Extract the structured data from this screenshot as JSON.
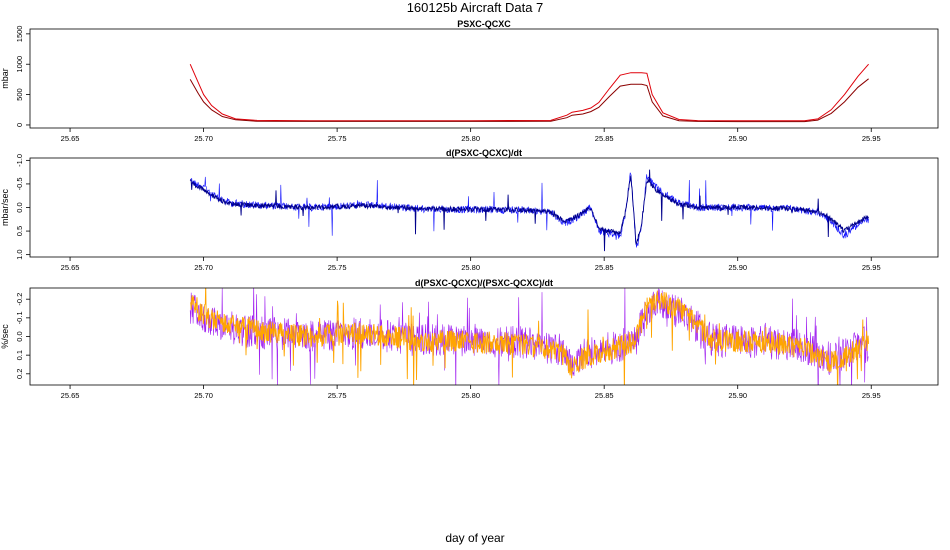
{
  "figure": {
    "title": "160125b   Aircraft Data 7",
    "xlabel": "day of year"
  },
  "colors": {
    "red": "#e0000a",
    "darkred": "#8b0000",
    "navy": "#00008b",
    "blue": "#1010ff",
    "purple": "#a020f0",
    "orange": "#ffa500"
  },
  "chart_data": [
    {
      "type": "line",
      "title": "PSXC-QCXC",
      "ylabel": "mbar",
      "xlim": [
        25.635,
        25.975
      ],
      "ylim": [
        -50,
        1580
      ],
      "xticks": [
        25.65,
        25.7,
        25.75,
        25.8,
        25.85,
        25.9,
        25.95
      ],
      "xtick_labels": [
        "25.65",
        "25.70",
        "25.75",
        "25.80",
        "25.85",
        "25.90",
        "25.95"
      ],
      "yticks": [
        0,
        500,
        1000,
        1500
      ],
      "ytick_labels": [
        "0",
        "500",
        "1000",
        "1500"
      ],
      "series": [
        {
          "name": "PSXC-QCXC (red)",
          "color": "red",
          "x": [
            25.695,
            25.698,
            25.7,
            25.703,
            25.707,
            25.712,
            25.72,
            25.74,
            25.8,
            25.83,
            25.836,
            25.838,
            25.842,
            25.845,
            25.848,
            25.852,
            25.856,
            25.86,
            25.864,
            25.866,
            25.868,
            25.872,
            25.878,
            25.885,
            25.9,
            25.925,
            25.93,
            25.935,
            25.94,
            25.945,
            25.949
          ],
          "y": [
            1000,
            700,
            500,
            320,
            180,
            100,
            75,
            70,
            70,
            75,
            160,
            210,
            240,
            280,
            370,
            600,
            820,
            860,
            860,
            850,
            500,
            200,
            90,
            72,
            70,
            70,
            100,
            250,
            500,
            800,
            1000
          ]
        },
        {
          "name": "PSXC-QCXC (dark red)",
          "color": "darkred",
          "x": [
            25.695,
            25.698,
            25.7,
            25.703,
            25.707,
            25.712,
            25.72,
            25.74,
            25.8,
            25.83,
            25.836,
            25.838,
            25.842,
            25.845,
            25.848,
            25.852,
            25.856,
            25.86,
            25.864,
            25.866,
            25.868,
            25.872,
            25.878,
            25.885,
            25.9,
            25.925,
            25.93,
            25.935,
            25.94,
            25.945,
            25.949
          ],
          "y": [
            750,
            520,
            380,
            250,
            140,
            85,
            60,
            58,
            58,
            60,
            120,
            160,
            180,
            220,
            290,
            470,
            640,
            670,
            670,
            650,
            380,
            150,
            70,
            58,
            56,
            56,
            80,
            190,
            380,
            620,
            760
          ]
        }
      ]
    },
    {
      "type": "line",
      "title": "d(PSXC-QCXC)/dt",
      "ylabel": "mbar/sec",
      "xlim": [
        25.635,
        25.975
      ],
      "ylim": [
        1.05,
        -1.05
      ],
      "xticks": [
        25.65,
        25.7,
        25.75,
        25.8,
        25.85,
        25.9,
        25.95
      ],
      "xtick_labels": [
        "25.65",
        "25.70",
        "25.75",
        "25.80",
        "25.85",
        "25.90",
        "25.95"
      ],
      "yticks": [
        -1.0,
        -0.5,
        0.0,
        0.5,
        1.0
      ],
      "ytick_labels": [
        "-1.0",
        "-0.5",
        "0.0",
        "0.5",
        "1.0"
      ],
      "series": [
        {
          "name": "d(PSXC-QCXC)/dt (blue)",
          "color": "blue",
          "x": [
            25.695,
            25.697,
            25.7,
            25.705,
            25.71,
            25.72,
            25.74,
            25.76,
            25.78,
            25.8,
            25.82,
            25.83,
            25.835,
            25.84,
            25.845,
            25.848,
            25.852,
            25.856,
            25.858,
            25.86,
            25.862,
            25.864,
            25.866,
            25.868,
            25.872,
            25.878,
            25.885,
            25.9,
            25.92,
            25.93,
            25.935,
            25.94,
            25.945,
            25.949
          ],
          "y": [
            -0.6,
            -0.5,
            -0.45,
            -0.2,
            -0.1,
            -0.05,
            0.0,
            -0.05,
            0.02,
            0.05,
            0.05,
            0.1,
            0.35,
            0.2,
            0.0,
            0.5,
            0.55,
            0.6,
            0.1,
            -0.8,
            0.9,
            0.4,
            -0.7,
            -0.5,
            -0.3,
            -0.1,
            0.0,
            0.0,
            0.02,
            0.1,
            0.3,
            0.6,
            0.35,
            0.25
          ]
        },
        {
          "name": "d(PSXC-QCXC)/dt (navy)",
          "color": "navy",
          "x": [
            25.695,
            25.697,
            25.7,
            25.705,
            25.71,
            25.72,
            25.74,
            25.76,
            25.78,
            25.8,
            25.82,
            25.83,
            25.835,
            25.84,
            25.845,
            25.848,
            25.852,
            25.856,
            25.858,
            25.86,
            25.862,
            25.864,
            25.866,
            25.868,
            25.872,
            25.878,
            25.885,
            25.9,
            25.92,
            25.93,
            25.935,
            25.94,
            25.945,
            25.949
          ],
          "y": [
            -0.55,
            -0.45,
            -0.4,
            -0.18,
            -0.08,
            -0.04,
            0.0,
            -0.04,
            0.02,
            0.04,
            0.05,
            0.1,
            0.3,
            0.18,
            0.0,
            0.45,
            0.5,
            0.55,
            0.1,
            -0.7,
            0.8,
            0.35,
            -0.6,
            -0.45,
            -0.25,
            -0.08,
            0.0,
            0.0,
            0.02,
            0.1,
            0.25,
            0.5,
            0.3,
            0.2
          ]
        }
      ]
    },
    {
      "type": "line",
      "title": "d(PSXC-QCXC)/(PSXC-QCXC)/dt",
      "ylabel": "%/sec",
      "xlim": [
        25.635,
        25.975
      ],
      "ylim": [
        0.26,
        -0.26
      ],
      "xticks": [
        25.65,
        25.7,
        25.75,
        25.8,
        25.85,
        25.9,
        25.95
      ],
      "xtick_labels": [
        "25.65",
        "25.70",
        "25.75",
        "25.80",
        "25.85",
        "25.90",
        "25.95"
      ],
      "yticks": [
        -0.2,
        -0.1,
        0.0,
        0.1,
        0.2
      ],
      "ytick_labels": [
        "-0.2",
        "-0.1",
        "0.0",
        "0.1",
        "0.2"
      ],
      "series": [
        {
          "name": "d(PSXC-QCXC)/(PSXC-QCXC)/dt (purple)",
          "color": "purple",
          "x": [
            25.695,
            25.7,
            25.71,
            25.72,
            25.74,
            25.76,
            25.78,
            25.8,
            25.82,
            25.835,
            25.838,
            25.842,
            25.848,
            25.855,
            25.862,
            25.866,
            25.87,
            25.875,
            25.88,
            25.89,
            25.91,
            25.925,
            25.93,
            25.935,
            25.94,
            25.945,
            25.949
          ],
          "y": [
            -0.15,
            -0.1,
            -0.05,
            -0.02,
            0.0,
            -0.02,
            0.02,
            0.02,
            0.03,
            0.08,
            0.15,
            0.1,
            0.08,
            0.05,
            0.02,
            -0.15,
            -0.18,
            -0.15,
            -0.12,
            0.02,
            0.03,
            0.05,
            0.1,
            0.12,
            0.1,
            0.05,
            0.02
          ]
        },
        {
          "name": "d(PSXC-QCXC)/(PSXC-QCXC)/dt (orange)",
          "color": "orange",
          "x": [
            25.695,
            25.7,
            25.71,
            25.72,
            25.74,
            25.76,
            25.78,
            25.8,
            25.82,
            25.835,
            25.838,
            25.842,
            25.848,
            25.855,
            25.862,
            25.866,
            25.87,
            25.875,
            25.88,
            25.89,
            25.91,
            25.925,
            25.93,
            25.935,
            25.94,
            25.945,
            25.949
          ],
          "y": [
            -0.17,
            -0.12,
            -0.06,
            -0.03,
            0.0,
            -0.02,
            0.02,
            0.03,
            0.04,
            0.1,
            0.17,
            0.12,
            0.09,
            0.06,
            0.02,
            -0.17,
            -0.2,
            -0.17,
            -0.13,
            0.02,
            0.03,
            0.06,
            0.12,
            0.14,
            0.12,
            0.06,
            0.02
          ]
        }
      ]
    }
  ]
}
